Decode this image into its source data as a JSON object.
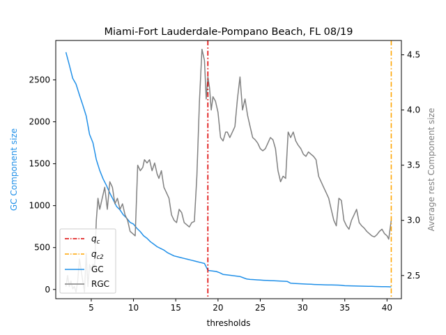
{
  "chart_data": {
    "type": "line",
    "title": "Miami-Fort Lauderdale-Pompano Beach, FL 08/19",
    "xlabel": "thresholds",
    "ylabel_left": "GC Component size",
    "ylabel_right": "Average rest Component size",
    "xlim": [
      0.8,
      41.7
    ],
    "ylim_left": [
      -110,
      2970
    ],
    "ylim_right": [
      2.29,
      4.63
    ],
    "xticks": [
      5,
      10,
      15,
      20,
      25,
      30,
      35,
      40
    ],
    "xtick_labels": [
      "5",
      "10",
      "15",
      "20",
      "25",
      "30",
      "35",
      "40"
    ],
    "yticks_left": [
      0,
      500,
      1000,
      1500,
      2000,
      2500
    ],
    "ytick_labels_left": [
      "0",
      "500",
      "1000",
      "1500",
      "2000",
      "2500"
    ],
    "yticks_right": [
      2.5,
      3.0,
      3.5,
      4.0,
      4.5
    ],
    "ytick_labels_right": [
      "2.5",
      "3.0",
      "3.5",
      "4.0",
      "4.5"
    ],
    "grid": false,
    "legend_position": "lower-left",
    "colors": {
      "gc": "#1f8fe8",
      "rgc": "#808080",
      "qc": "#dd0000",
      "qc2": "#ffa500",
      "left_label": "#1f8fe8",
      "right_label": "#808080"
    },
    "vlines": [
      {
        "name": "q_c",
        "label_main": "q",
        "label_sub": "c",
        "x": 18.8,
        "color": "#dd0000",
        "style": "dashdot"
      },
      {
        "name": "q_c2",
        "label_main": "q",
        "label_sub": "c2",
        "x": 40.5,
        "color": "#ffa500",
        "style": "dashdot"
      }
    ],
    "series": [
      {
        "name": "GC",
        "axis": "left",
        "color": "#1f8fe8",
        "x": [
          2.0,
          2.4,
          2.8,
          3.2,
          3.6,
          4.0,
          4.4,
          4.8,
          5.2,
          5.6,
          6.0,
          6.4,
          6.8,
          7.2,
          7.6,
          8.0,
          8.4,
          8.8,
          9.2,
          9.6,
          10.0,
          10.4,
          10.8,
          11.2,
          11.6,
          12.0,
          12.4,
          12.8,
          13.2,
          13.6,
          14.0,
          14.4,
          14.8,
          15.2,
          15.6,
          16.0,
          16.4,
          16.8,
          17.2,
          17.6,
          18.0,
          18.4,
          18.8,
          19.0,
          19.4,
          19.8,
          20.2,
          20.6,
          21.0,
          21.4,
          21.8,
          22.2,
          22.6,
          23.0,
          23.4,
          23.8,
          24.2,
          24.6,
          25.0,
          25.4,
          25.8,
          26.2,
          26.6,
          27.0,
          27.4,
          27.8,
          28.2,
          28.6,
          29.0,
          29.4,
          29.8,
          30.2,
          30.6,
          31.0,
          31.4,
          31.8,
          32.2,
          32.6,
          33.0,
          33.4,
          33.8,
          34.2,
          34.6,
          35.0,
          35.4,
          35.8,
          36.2,
          36.6,
          37.0,
          37.4,
          37.8,
          38.2,
          38.6,
          39.0,
          39.4,
          39.8,
          40.2,
          40.5
        ],
        "values": [
          2830,
          2680,
          2520,
          2450,
          2320,
          2200,
          2070,
          1850,
          1750,
          1550,
          1420,
          1320,
          1240,
          1150,
          1070,
          990,
          950,
          890,
          850,
          800,
          780,
          730,
          690,
          640,
          610,
          570,
          540,
          510,
          490,
          470,
          440,
          420,
          400,
          390,
          380,
          370,
          360,
          350,
          340,
          330,
          320,
          310,
          230,
          225,
          220,
          215,
          200,
          180,
          175,
          170,
          165,
          160,
          155,
          140,
          125,
          120,
          118,
          115,
          112,
          110,
          108,
          106,
          104,
          102,
          100,
          98,
          96,
          75,
          72,
          70,
          68,
          66,
          64,
          62,
          60,
          58,
          57,
          56,
          55,
          54,
          53,
          52,
          50,
          45,
          44,
          43,
          42,
          41,
          40,
          39,
          38,
          37,
          36,
          35,
          34,
          33,
          32,
          31
        ]
      },
      {
        "name": "RGC",
        "axis": "right",
        "color": "#808080",
        "x": [
          2.0,
          2.2,
          2.4,
          2.6,
          2.8,
          3.0,
          3.2,
          3.4,
          3.6,
          3.8,
          4.0,
          4.2,
          4.4,
          4.6,
          4.8,
          5.0,
          5.2,
          5.4,
          5.6,
          5.8,
          6.0,
          6.3,
          6.6,
          6.9,
          7.2,
          7.5,
          7.8,
          8.1,
          8.4,
          8.7,
          9.0,
          9.3,
          9.6,
          9.9,
          10.2,
          10.5,
          10.8,
          11.1,
          11.3,
          11.6,
          11.9,
          12.2,
          12.5,
          12.8,
          13.0,
          13.3,
          13.6,
          13.9,
          14.2,
          14.5,
          14.8,
          15.1,
          15.4,
          15.7,
          16.0,
          16.3,
          16.6,
          16.9,
          17.2,
          17.5,
          17.8,
          18.1,
          18.4,
          18.6,
          18.8,
          19.0,
          19.2,
          19.4,
          19.7,
          20.0,
          20.3,
          20.6,
          20.9,
          21.1,
          21.4,
          21.7,
          22.0,
          22.3,
          22.6,
          22.9,
          23.2,
          23.5,
          23.8,
          24.1,
          24.4,
          24.7,
          25.0,
          25.3,
          25.6,
          25.9,
          26.2,
          26.5,
          26.8,
          27.1,
          27.4,
          27.7,
          28.0,
          28.3,
          28.6,
          28.9,
          29.2,
          29.5,
          29.8,
          30.1,
          30.4,
          30.7,
          31.0,
          31.3,
          31.6,
          31.9,
          32.2,
          32.5,
          32.8,
          33.1,
          33.4,
          33.7,
          34.0,
          34.3,
          34.6,
          34.9,
          35.2,
          35.5,
          35.8,
          36.1,
          36.4,
          36.7,
          37.0,
          37.3,
          37.6,
          37.9,
          38.2,
          38.5,
          38.8,
          39.1,
          39.4,
          39.7,
          40.0,
          40.2,
          40.5
        ],
        "values": [
          2.4,
          2.5,
          2.4,
          2.45,
          2.38,
          2.4,
          2.35,
          2.45,
          2.65,
          2.55,
          2.45,
          2.35,
          2.7,
          2.4,
          2.6,
          2.55,
          2.6,
          2.58,
          3.0,
          3.2,
          3.1,
          3.2,
          3.3,
          3.1,
          3.35,
          3.3,
          3.15,
          3.2,
          3.1,
          3.15,
          3.05,
          3.0,
          2.9,
          2.88,
          2.86,
          3.5,
          3.45,
          3.48,
          3.55,
          3.52,
          3.55,
          3.45,
          3.52,
          3.42,
          3.38,
          3.45,
          3.3,
          3.25,
          3.2,
          3.05,
          3.0,
          2.98,
          3.1,
          3.07,
          2.98,
          2.96,
          2.94,
          2.98,
          2.99,
          3.4,
          4.08,
          4.55,
          4.45,
          4.1,
          4.3,
          4.2,
          4.0,
          4.12,
          4.08,
          3.98,
          3.75,
          3.72,
          3.8,
          3.8,
          3.75,
          3.8,
          3.85,
          4.1,
          4.3,
          4.0,
          4.1,
          3.95,
          3.85,
          3.75,
          3.73,
          3.7,
          3.65,
          3.63,
          3.65,
          3.7,
          3.75,
          3.73,
          3.65,
          3.45,
          3.35,
          3.4,
          3.38,
          3.8,
          3.75,
          3.8,
          3.72,
          3.68,
          3.65,
          3.6,
          3.58,
          3.62,
          3.6,
          3.58,
          3.55,
          3.4,
          3.35,
          3.3,
          3.25,
          3.2,
          3.1,
          3.0,
          2.95,
          3.2,
          3.18,
          3.0,
          2.95,
          2.92,
          3.0,
          3.05,
          3.1,
          2.98,
          2.95,
          2.93,
          2.9,
          2.88,
          2.86,
          2.85,
          2.87,
          2.9,
          2.92,
          2.88,
          2.86,
          2.83,
          3.0
        ]
      }
    ]
  }
}
